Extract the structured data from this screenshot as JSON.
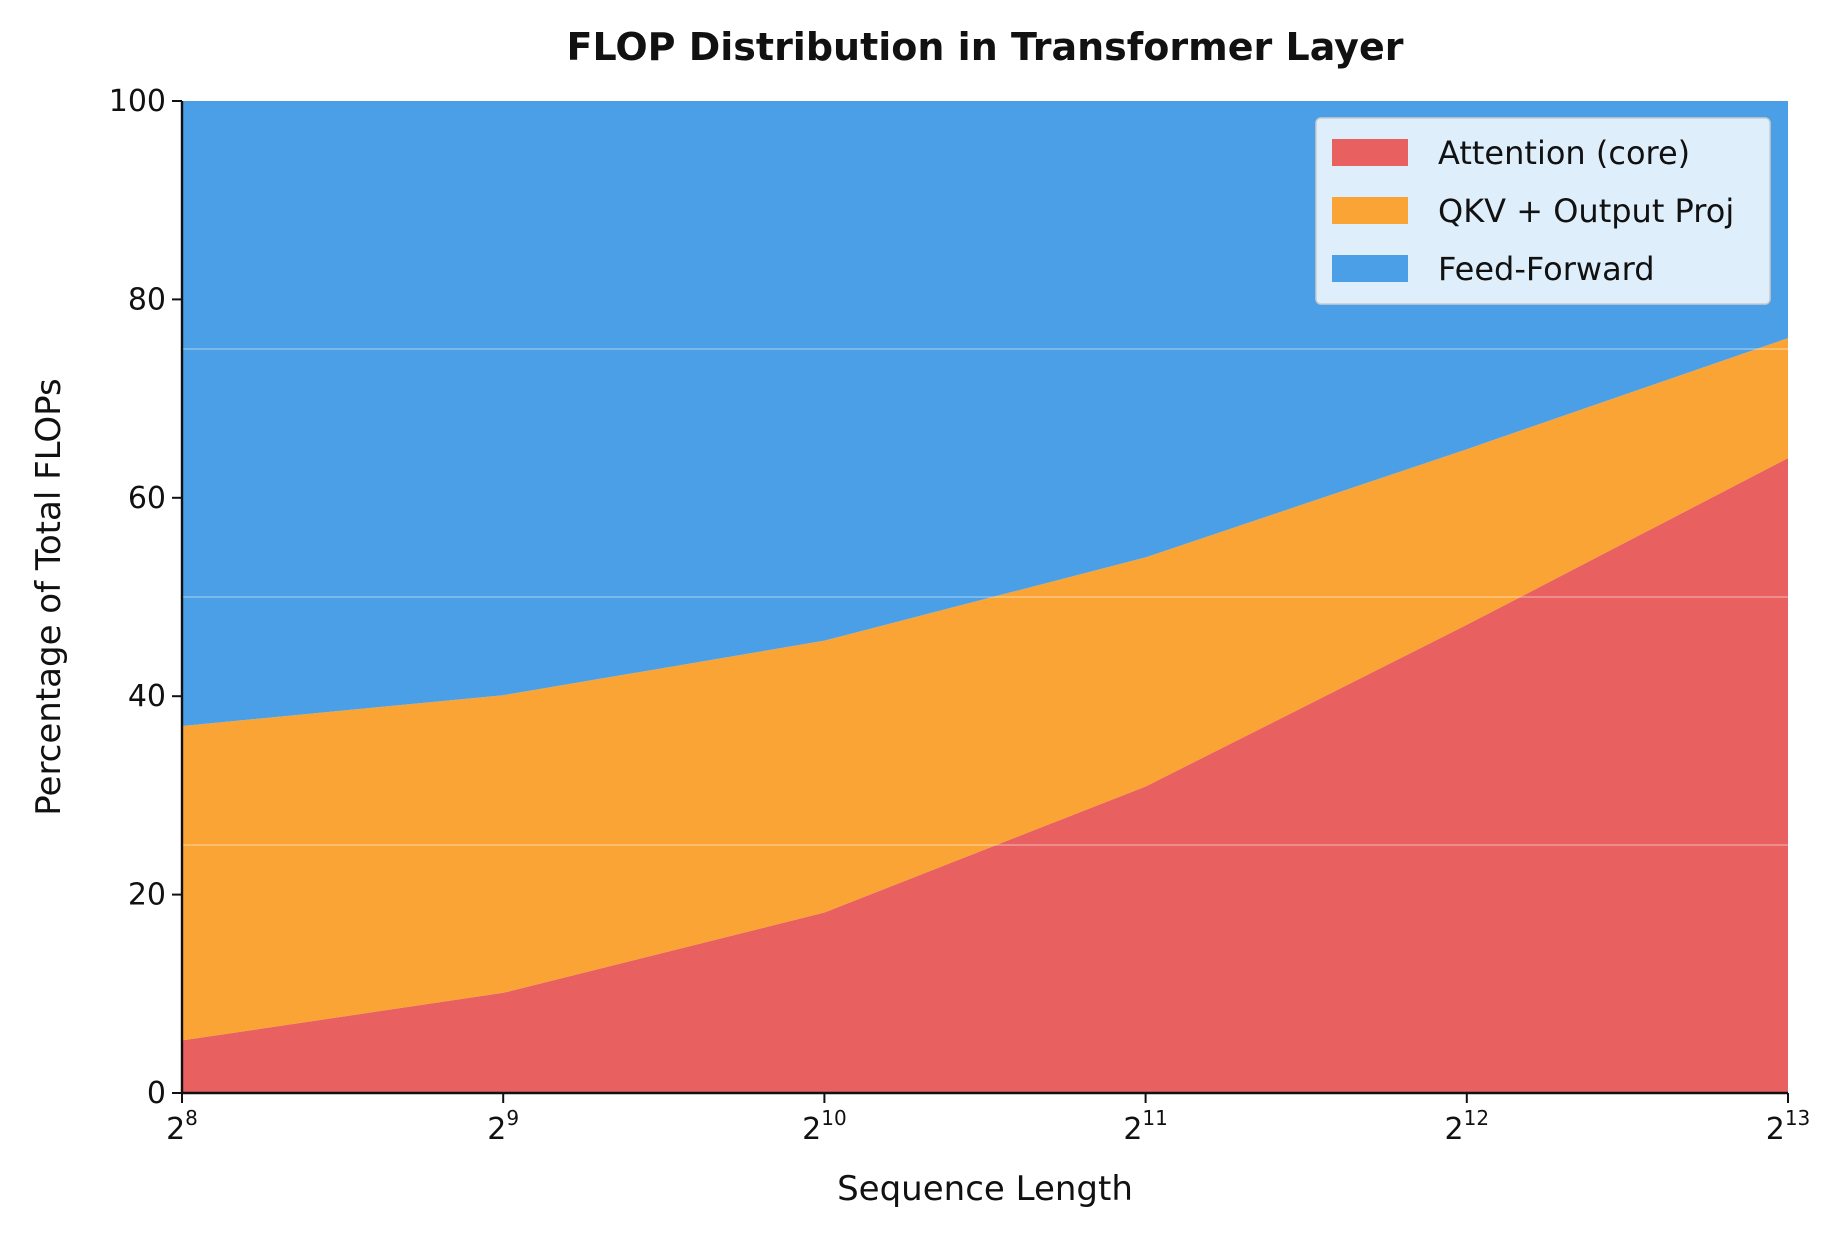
{
  "chart_data": {
    "type": "area",
    "stacked": true,
    "title": "FLOP Distribution in Transformer Layer",
    "xlabel": "Sequence Length",
    "ylabel": "Percentage of Total FLOPs",
    "x": [
      256,
      512,
      1024,
      2048,
      4096,
      8192
    ],
    "x_scale": "log2",
    "x_tick_labels": [
      {
        "base": "2",
        "exp": "8"
      },
      {
        "base": "2",
        "exp": "9"
      },
      {
        "base": "2",
        "exp": "10"
      },
      {
        "base": "2",
        "exp": "11"
      },
      {
        "base": "2",
        "exp": "12"
      },
      {
        "base": "2",
        "exp": "13"
      }
    ],
    "ylim": [
      0,
      100
    ],
    "y_ticks": [
      "0",
      "20",
      "40",
      "60",
      "80",
      "100"
    ],
    "grid": {
      "y": [
        25,
        50,
        75
      ]
    },
    "legend_position": "top-right",
    "series": [
      {
        "name": "Attention (core)",
        "color": "#e96060",
        "values": [
          5.3,
          10.1,
          18.2,
          30.9,
          47.2,
          64.0
        ]
      },
      {
        "name": "QKV + Output Proj",
        "color": "#f9a435",
        "values": [
          31.7,
          30.0,
          27.4,
          23.1,
          17.7,
          12.1
        ]
      },
      {
        "name": "Feed-Forward",
        "color": "#4a9fe6",
        "values": [
          63.0,
          59.9,
          54.4,
          46.0,
          35.1,
          23.9
        ]
      }
    ]
  }
}
